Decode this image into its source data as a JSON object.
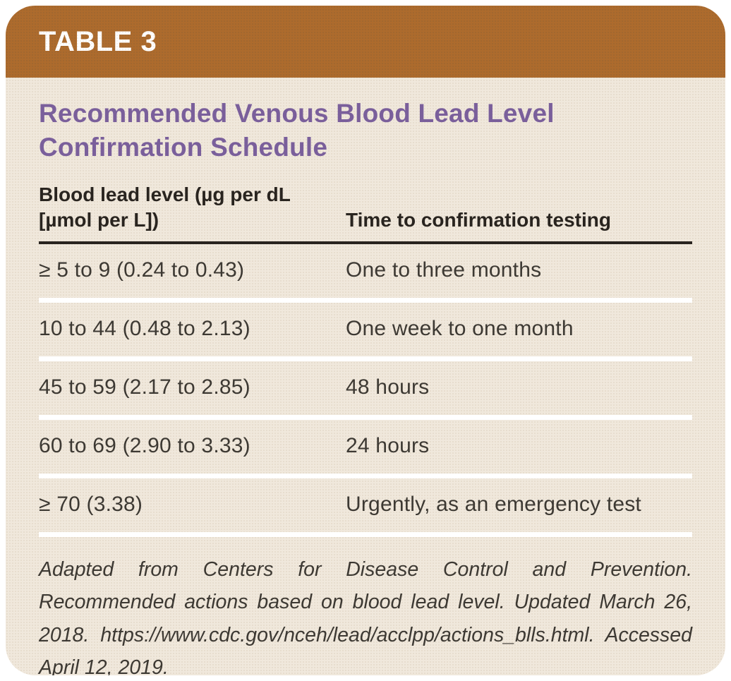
{
  "colors": {
    "page_bg": "#ffffff",
    "tag_bar_brown": "#ad6b2d",
    "card_cream": "#f0e8dc",
    "title_purple": "#7a5f9b",
    "text_dark": "#3d3933",
    "header_rule_black": "#29241f",
    "row_separator_white": "#ffffff",
    "tag_text_white": "#ffffff"
  },
  "card": {
    "tag": "TABLE 3",
    "title": "Recommended Venous Blood Lead Level Confirmation Schedule"
  },
  "table": {
    "columns": [
      "Blood lead level (µg per dL [µmol per L])",
      "Time to confirmation testing"
    ],
    "rows": [
      {
        "level": "≥ 5 to 9 (0.24 to 0.43)",
        "time": "One to three months"
      },
      {
        "level": "10 to 44 (0.48 to 2.13)",
        "time": "One week to one month"
      },
      {
        "level": "45 to 59 (2.17 to 2.85)",
        "time": "48 hours"
      },
      {
        "level": "60 to 69 (2.90 to 3.33)",
        "time": "24 hours"
      },
      {
        "level": "≥ 70 (3.38)",
        "time": "Urgently, as an emergency test"
      }
    ]
  },
  "footnote": "Adapted from Centers for Disease Control and Prevention. Recommended actions based on blood lead level. Updated March 26, 2018. https://www.cdc.gov/nceh/lead/acclpp/actions_blls.html. Accessed April 12, 2019."
}
